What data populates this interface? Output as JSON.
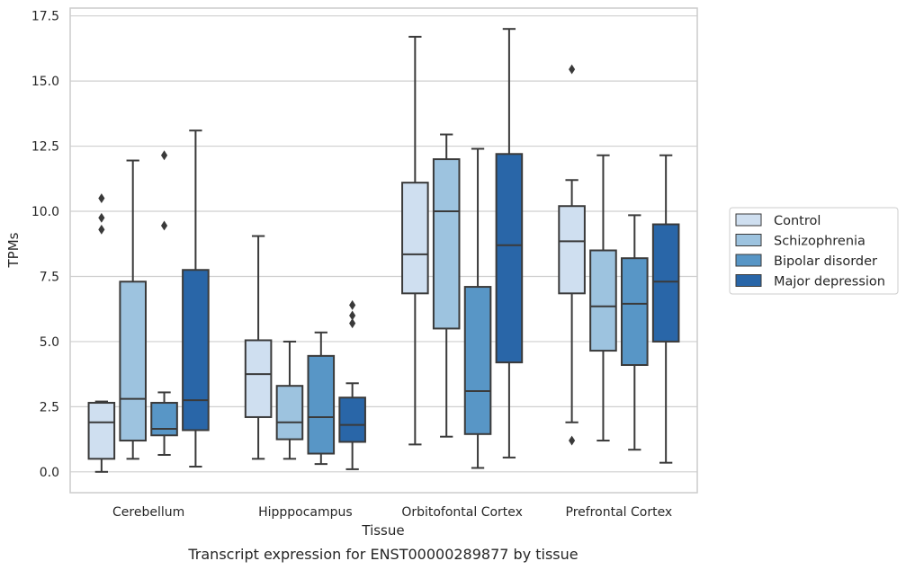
{
  "chart_data": {
    "type": "box",
    "xlabel": "Tissue",
    "ylabel": "TPMs",
    "caption": "Transcript expression for ENST00000289877 by tissue",
    "ylim": [
      -0.8,
      17.8
    ],
    "yticks": [
      "0.0",
      "2.5",
      "5.0",
      "7.5",
      "10.0",
      "12.5",
      "15.0",
      "17.5"
    ],
    "ytick_values": [
      0,
      2.5,
      5,
      7.5,
      10,
      12.5,
      15,
      17.5
    ],
    "grid": "horizontal",
    "legend_position": "right",
    "categories": [
      "Cerebellum",
      "Hipppocampus",
      "Orbitofontal Cortex",
      "Prefrontal Cortex"
    ],
    "series": [
      {
        "name": "Control",
        "color": "#cfdff0",
        "boxes": [
          {
            "whislo": 0.0,
            "q1": 0.5,
            "med": 1.9,
            "q3": 2.65,
            "whishi": 2.7,
            "fliers": [
              9.3,
              9.75,
              10.5
            ]
          },
          {
            "whislo": 0.5,
            "q1": 2.1,
            "med": 3.75,
            "q3": 5.05,
            "whishi": 9.05,
            "fliers": []
          },
          {
            "whislo": 1.05,
            "q1": 6.85,
            "med": 8.35,
            "q3": 11.1,
            "whishi": 16.7,
            "fliers": []
          },
          {
            "whislo": 1.9,
            "q1": 6.85,
            "med": 8.85,
            "q3": 10.2,
            "whishi": 11.2,
            "fliers": [
              1.2,
              15.45
            ]
          }
        ]
      },
      {
        "name": "Schizophrenia",
        "color": "#9dc3df",
        "boxes": [
          {
            "whislo": 0.5,
            "q1": 1.2,
            "med": 2.8,
            "q3": 7.3,
            "whishi": 11.95,
            "fliers": []
          },
          {
            "whislo": 0.5,
            "q1": 1.25,
            "med": 1.9,
            "q3": 3.3,
            "whishi": 5.0,
            "fliers": []
          },
          {
            "whislo": 1.35,
            "q1": 5.5,
            "med": 10.0,
            "q3": 12.0,
            "whishi": 12.95,
            "fliers": []
          },
          {
            "whislo": 1.2,
            "q1": 4.65,
            "med": 6.35,
            "q3": 8.5,
            "whishi": 12.15,
            "fliers": []
          }
        ]
      },
      {
        "name": "Bipolar disorder",
        "color": "#5896c6",
        "boxes": [
          {
            "whislo": 0.65,
            "q1": 1.4,
            "med": 1.65,
            "q3": 2.65,
            "whishi": 3.05,
            "fliers": [
              9.45,
              12.15
            ]
          },
          {
            "whislo": 0.3,
            "q1": 0.7,
            "med": 2.1,
            "q3": 4.45,
            "whishi": 5.35,
            "fliers": []
          },
          {
            "whislo": 0.15,
            "q1": 1.45,
            "med": 3.1,
            "q3": 7.1,
            "whishi": 12.4,
            "fliers": []
          },
          {
            "whislo": 0.85,
            "q1": 4.1,
            "med": 6.45,
            "q3": 8.2,
            "whishi": 9.85,
            "fliers": []
          }
        ]
      },
      {
        "name": "Major depression",
        "color": "#2966a8",
        "boxes": [
          {
            "whislo": 0.2,
            "q1": 1.6,
            "med": 2.75,
            "q3": 7.75,
            "whishi": 13.1,
            "fliers": []
          },
          {
            "whislo": 0.1,
            "q1": 1.15,
            "med": 1.8,
            "q3": 2.85,
            "whishi": 3.4,
            "fliers": [
              5.7,
              6.0,
              6.4
            ]
          },
          {
            "whislo": 0.55,
            "q1": 4.2,
            "med": 8.7,
            "q3": 12.2,
            "whishi": 17.0,
            "fliers": []
          },
          {
            "whislo": 0.35,
            "q1": 5.0,
            "med": 7.3,
            "q3": 9.5,
            "whishi": 12.15,
            "fliers": []
          }
        ]
      }
    ]
  }
}
